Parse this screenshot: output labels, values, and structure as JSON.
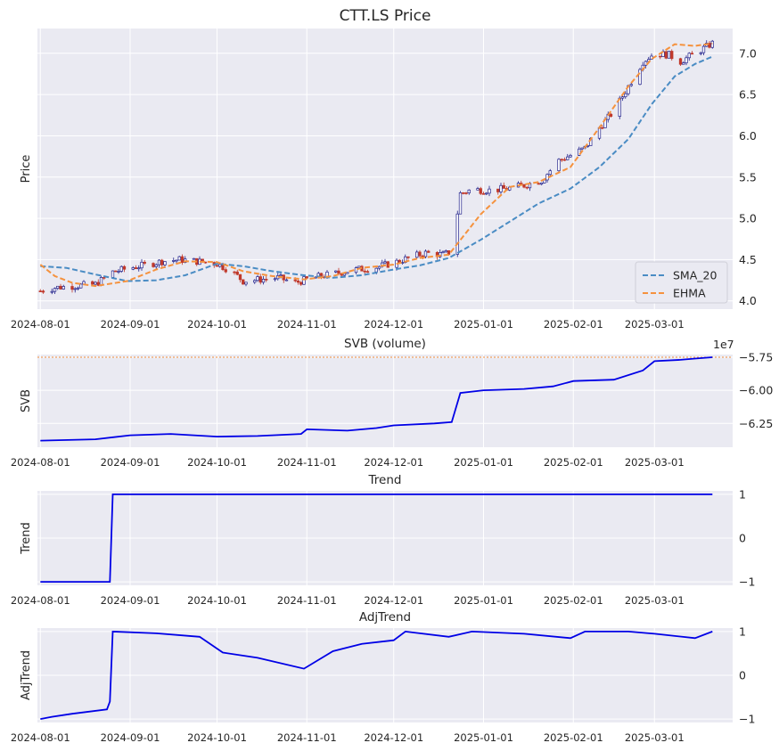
{
  "colors": {
    "background": "#eaeaf2",
    "grid": "#ffffff",
    "sma": "#4a8cc4",
    "ehma": "#f5923e",
    "candle_up": "#1f1f8a",
    "candle_down": "#c0392b",
    "indicator_line": "#0000e6",
    "svb_ref": "#f5923e"
  },
  "x_ticks": [
    "2024-08-01",
    "2024-09-01",
    "2024-10-01",
    "2024-11-01",
    "2024-12-01",
    "2025-01-01",
    "2025-02-01",
    "2025-03-01"
  ],
  "chart_data": [
    {
      "id": "price",
      "type": "candlestick",
      "title": "CTT.LS Price",
      "xlabel": "",
      "ylabel": "Price",
      "x_range": [
        "2024-07-31",
        "2025-03-28"
      ],
      "ylim": [
        3.9,
        7.3
      ],
      "yticks": [
        4.0,
        4.5,
        5.0,
        5.5,
        6.0,
        6.5,
        7.0
      ],
      "ytick_labels": [
        "4.0",
        "4.5",
        "5.0",
        "5.5",
        "6.0",
        "6.5",
        "7.0"
      ],
      "grid": true,
      "legend": "lower-right",
      "series": [
        {
          "name": "SMA_20",
          "style": "dashed",
          "points": [
            [
              "2024-08-01",
              4.42
            ],
            [
              "2024-08-10",
              4.4
            ],
            [
              "2024-08-20",
              4.32
            ],
            [
              "2024-08-31",
              4.24
            ],
            [
              "2024-09-10",
              4.25
            ],
            [
              "2024-09-20",
              4.31
            ],
            [
              "2024-10-01",
              4.45
            ],
            [
              "2024-10-10",
              4.42
            ],
            [
              "2024-10-20",
              4.36
            ],
            [
              "2024-10-31",
              4.31
            ],
            [
              "2024-11-10",
              4.28
            ],
            [
              "2024-11-20",
              4.31
            ],
            [
              "2024-12-01",
              4.38
            ],
            [
              "2024-12-10",
              4.43
            ],
            [
              "2024-12-20",
              4.52
            ],
            [
              "2024-12-31",
              4.74
            ],
            [
              "2025-01-10",
              4.96
            ],
            [
              "2025-01-20",
              5.18
            ],
            [
              "2025-01-31",
              5.36
            ],
            [
              "2025-02-10",
              5.62
            ],
            [
              "2025-02-20",
              5.96
            ],
            [
              "2025-02-28",
              6.38
            ],
            [
              "2025-03-08",
              6.72
            ],
            [
              "2025-03-15",
              6.87
            ],
            [
              "2025-03-21",
              6.96
            ]
          ]
        },
        {
          "name": "EHMA",
          "style": "dashed",
          "points": [
            [
              "2024-08-01",
              4.44
            ],
            [
              "2024-08-06",
              4.3
            ],
            [
              "2024-08-12",
              4.22
            ],
            [
              "2024-08-20",
              4.18
            ],
            [
              "2024-08-31",
              4.24
            ],
            [
              "2024-09-10",
              4.38
            ],
            [
              "2024-09-20",
              4.48
            ],
            [
              "2024-10-01",
              4.47
            ],
            [
              "2024-10-10",
              4.36
            ],
            [
              "2024-10-20",
              4.3
            ],
            [
              "2024-10-31",
              4.26
            ],
            [
              "2024-11-10",
              4.3
            ],
            [
              "2024-11-20",
              4.4
            ],
            [
              "2024-12-01",
              4.44
            ],
            [
              "2024-12-10",
              4.52
            ],
            [
              "2024-12-20",
              4.56
            ],
            [
              "2024-12-31",
              5.05
            ],
            [
              "2025-01-10",
              5.38
            ],
            [
              "2025-01-20",
              5.44
            ],
            [
              "2025-01-31",
              5.62
            ],
            [
              "2025-02-10",
              6.1
            ],
            [
              "2025-02-20",
              6.6
            ],
            [
              "2025-02-28",
              6.93
            ],
            [
              "2025-03-08",
              7.11
            ],
            [
              "2025-03-15",
              7.09
            ],
            [
              "2025-03-21",
              7.12
            ]
          ]
        }
      ],
      "candles_from_points": [
        [
          "2024-08-01",
          4.12
        ],
        [
          "2024-08-06",
          4.16
        ],
        [
          "2024-08-12",
          4.18
        ],
        [
          "2024-08-20",
          4.2
        ],
        [
          "2024-08-26",
          4.35
        ],
        [
          "2024-09-01",
          4.4
        ],
        [
          "2024-09-07",
          4.44
        ],
        [
          "2024-09-12",
          4.48
        ],
        [
          "2024-09-18",
          4.5
        ],
        [
          "2024-09-24",
          4.48
        ],
        [
          "2024-10-01",
          4.45
        ],
        [
          "2024-10-06",
          4.36
        ],
        [
          "2024-10-10",
          4.24
        ],
        [
          "2024-10-16",
          4.26
        ],
        [
          "2024-10-22",
          4.28
        ],
        [
          "2024-10-28",
          4.22
        ],
        [
          "2024-11-01",
          4.26
        ],
        [
          "2024-11-06",
          4.3
        ],
        [
          "2024-11-12",
          4.34
        ],
        [
          "2024-11-18",
          4.38
        ],
        [
          "2024-11-24",
          4.4
        ],
        [
          "2024-12-01",
          4.46
        ],
        [
          "2024-12-06",
          4.52
        ],
        [
          "2024-12-12",
          4.58
        ],
        [
          "2024-12-18",
          4.56
        ],
        [
          "2024-12-21",
          4.6
        ],
        [
          "2024-12-24",
          5.3
        ],
        [
          "2024-12-28",
          5.35
        ],
        [
          "2025-01-03",
          5.34
        ],
        [
          "2025-01-09",
          5.36
        ],
        [
          "2025-01-15",
          5.4
        ],
        [
          "2025-01-21",
          5.46
        ],
        [
          "2025-01-27",
          5.7
        ],
        [
          "2025-02-01",
          5.78
        ],
        [
          "2025-02-05",
          5.85
        ],
        [
          "2025-02-10",
          6.1
        ],
        [
          "2025-02-15",
          6.3
        ],
        [
          "2025-02-20",
          6.6
        ],
        [
          "2025-02-25",
          6.9
        ],
        [
          "2025-03-01",
          7.0
        ],
        [
          "2025-03-06",
          6.98
        ],
        [
          "2025-03-10",
          6.9
        ],
        [
          "2025-03-15",
          7.0
        ],
        [
          "2025-03-21",
          7.12
        ]
      ]
    },
    {
      "id": "svb",
      "type": "line",
      "title": "SVB (volume)",
      "xlabel": "",
      "ylabel": "SVB",
      "offset_label": "1e7",
      "ylim": [
        -64300000,
        -57300000
      ],
      "yticks": [
        -62500000,
        -60000000,
        -57500000
      ],
      "ytick_labels": [
        "−6.25",
        "−6.00",
        "−5.75"
      ],
      "reference_line": -57500000,
      "grid": true,
      "points": [
        [
          "2024-08-01",
          -63800000
        ],
        [
          "2024-08-20",
          -63700000
        ],
        [
          "2024-09-01",
          -63400000
        ],
        [
          "2024-09-15",
          -63300000
        ],
        [
          "2024-10-01",
          -63500000
        ],
        [
          "2024-10-15",
          -63450000
        ],
        [
          "2024-10-30",
          -63300000
        ],
        [
          "2024-11-01",
          -62950000
        ],
        [
          "2024-11-15",
          -63050000
        ],
        [
          "2024-11-25",
          -62850000
        ],
        [
          "2024-12-01",
          -62650000
        ],
        [
          "2024-12-15",
          -62500000
        ],
        [
          "2024-12-21",
          -62400000
        ],
        [
          "2024-12-24",
          -60200000
        ],
        [
          "2025-01-01",
          -60000000
        ],
        [
          "2025-01-15",
          -59900000
        ],
        [
          "2025-01-25",
          -59700000
        ],
        [
          "2025-02-01",
          -59300000
        ],
        [
          "2025-02-15",
          -59200000
        ],
        [
          "2025-02-25",
          -58500000
        ],
        [
          "2025-03-01",
          -57800000
        ],
        [
          "2025-03-10",
          -57700000
        ],
        [
          "2025-03-15",
          -57600000
        ],
        [
          "2025-03-21",
          -57500000
        ]
      ]
    },
    {
      "id": "trend",
      "type": "line",
      "title": "Trend",
      "xlabel": "",
      "ylabel": "Trend",
      "ylim": [
        -1.08,
        1.08
      ],
      "yticks": [
        -1,
        0,
        1
      ],
      "ytick_labels": [
        "−1",
        "0",
        "1"
      ],
      "grid": true,
      "points": [
        [
          "2024-08-01",
          -1
        ],
        [
          "2024-08-25",
          -1
        ],
        [
          "2024-08-26",
          1
        ],
        [
          "2025-03-21",
          1
        ]
      ]
    },
    {
      "id": "adjtrend",
      "type": "line",
      "title": "AdjTrend",
      "xlabel": "",
      "ylabel": "AdjTrend",
      "ylim": [
        -1.08,
        1.08
      ],
      "yticks": [
        -1,
        0,
        1
      ],
      "ytick_labels": [
        "−1",
        "0",
        "1"
      ],
      "grid": true,
      "points": [
        [
          "2024-08-01",
          -1.0
        ],
        [
          "2024-08-05",
          -0.95
        ],
        [
          "2024-08-12",
          -0.88
        ],
        [
          "2024-08-24",
          -0.78
        ],
        [
          "2024-08-25",
          -0.6
        ],
        [
          "2024-08-26",
          1.0
        ],
        [
          "2024-09-10",
          0.96
        ],
        [
          "2024-09-25",
          0.88
        ],
        [
          "2024-10-03",
          0.52
        ],
        [
          "2024-10-15",
          0.4
        ],
        [
          "2024-10-31",
          0.15
        ],
        [
          "2024-11-10",
          0.55
        ],
        [
          "2024-11-20",
          0.72
        ],
        [
          "2024-12-01",
          0.8
        ],
        [
          "2024-12-05",
          1.0
        ],
        [
          "2024-12-20",
          0.88
        ],
        [
          "2024-12-28",
          1.0
        ],
        [
          "2025-01-15",
          0.95
        ],
        [
          "2025-01-31",
          0.85
        ],
        [
          "2025-02-05",
          1.0
        ],
        [
          "2025-02-20",
          1.0
        ],
        [
          "2025-03-01",
          0.95
        ],
        [
          "2025-03-15",
          0.85
        ],
        [
          "2025-03-21",
          1.0
        ]
      ]
    }
  ]
}
